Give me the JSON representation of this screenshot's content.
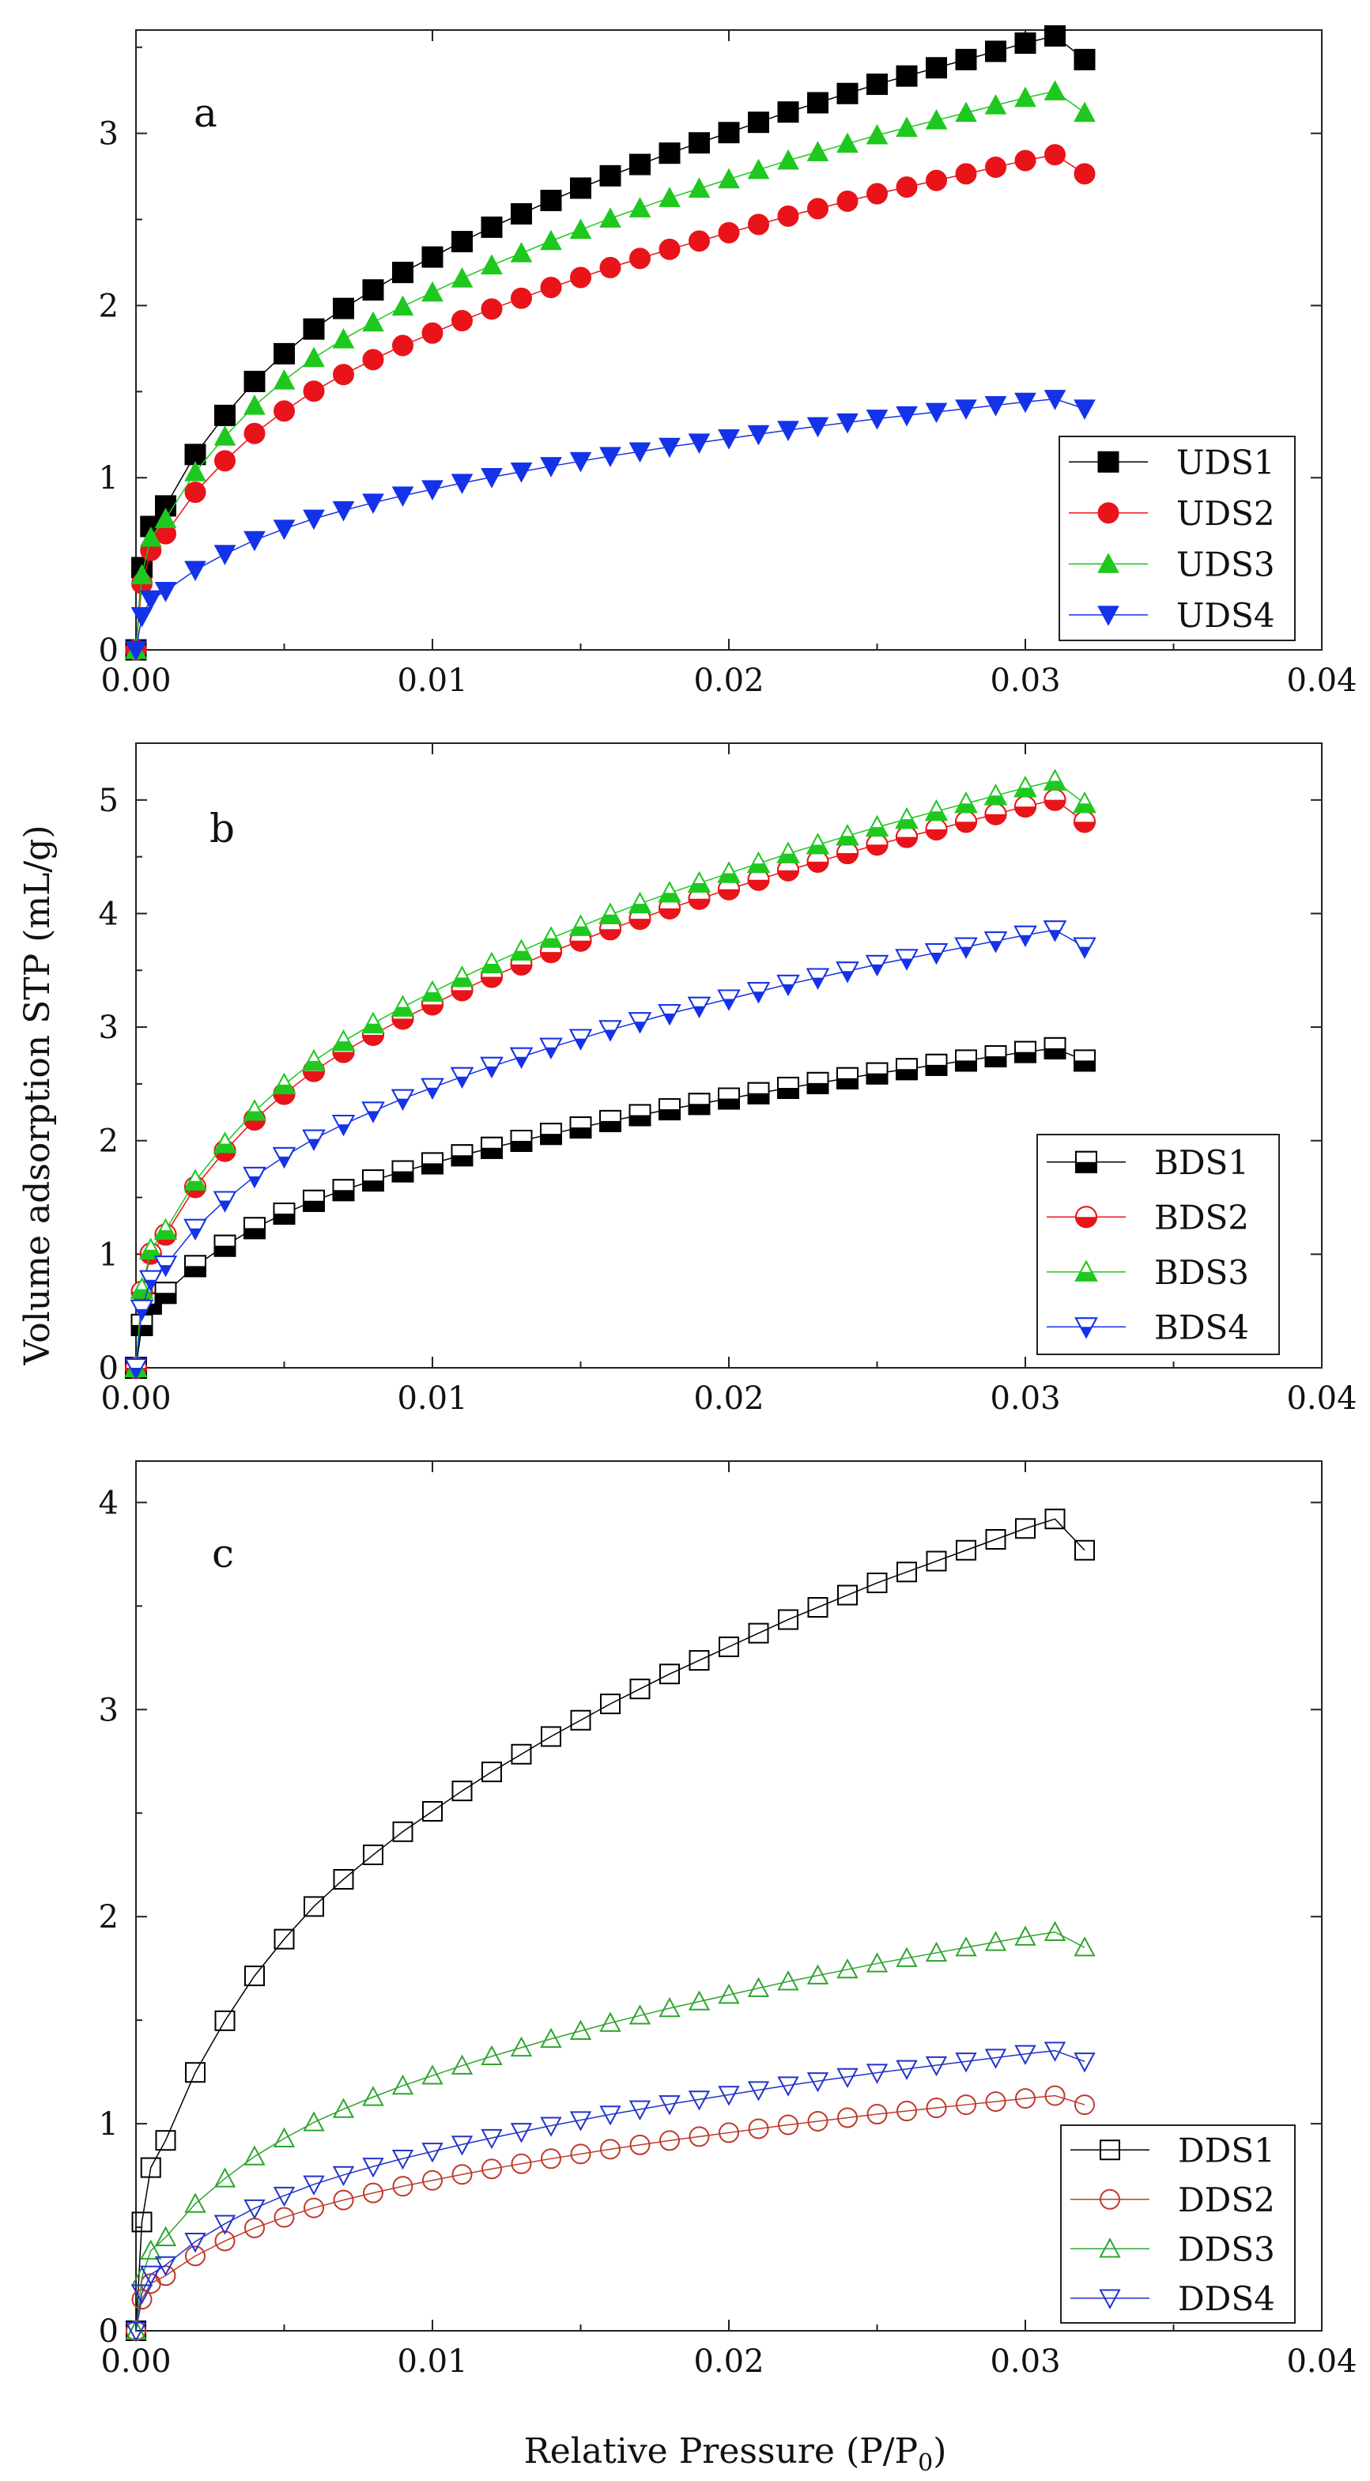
{
  "figure": {
    "ylabel": "Volume adsorption STP (mL/g)",
    "xlabel_main": "Relative Pressure (P/P",
    "xlabel_sub": "0",
    "xlabel_close": ")"
  },
  "chart_data": [
    {
      "type": "line",
      "panel": "a",
      "xlim": [
        0,
        0.04
      ],
      "ylim": [
        0,
        3.6
      ],
      "xticks": [
        "0.00",
        "0.01",
        "0.02",
        "0.03",
        "0.04"
      ],
      "yticks": [
        "0",
        "1",
        "2",
        "3"
      ],
      "xtick_values": [
        0,
        0.01,
        0.02,
        0.03,
        0.04
      ],
      "ytick_values": [
        0,
        1,
        2,
        3
      ],
      "legend_position": "bottom-right",
      "series": [
        {
          "name": "UDS1",
          "marker": "square",
          "filled": true,
          "color": "#000000",
          "scale": 0.5973
        },
        {
          "name": "UDS2",
          "marker": "circle",
          "filled": true,
          "color": "#e8141a",
          "scale": 0.4817
        },
        {
          "name": "UDS3",
          "marker": "triangle-up",
          "filled": true,
          "color": "#1ec81e",
          "scale": 0.5435
        },
        {
          "name": "UDS4",
          "marker": "triangle-down",
          "filled": true,
          "color": "#1432e8",
          "scale": 0.2441
        }
      ]
    },
    {
      "type": "line",
      "panel": "b",
      "xlim": [
        0,
        0.04
      ],
      "ylim": [
        0,
        5.5
      ],
      "xticks": [
        "0.00",
        "0.01",
        "0.02",
        "0.03",
        "0.04"
      ],
      "yticks": [
        "0",
        "1",
        "2",
        "3",
        "4",
        "5"
      ],
      "xtick_values": [
        0,
        0.01,
        0.02,
        0.03,
        0.04
      ],
      "ytick_values": [
        0,
        1,
        2,
        3,
        4,
        5
      ],
      "legend_position": "bottom-right",
      "series": [
        {
          "name": "BDS1",
          "marker": "square",
          "filled": "half",
          "color": "#000000",
          "scale": 0.4713
        },
        {
          "name": "BDS2",
          "marker": "circle",
          "filled": "half",
          "color": "#e8141a",
          "scale": 0.8377
        },
        {
          "name": "BDS3",
          "marker": "triangle-up",
          "filled": "half",
          "color": "#1ec81e",
          "scale": 0.8657
        },
        {
          "name": "BDS4",
          "marker": "triangle-down",
          "filled": "half",
          "color": "#1432e8",
          "scale": 0.6457
        }
      ]
    },
    {
      "type": "line",
      "panel": "c",
      "xlim": [
        0,
        0.04
      ],
      "ylim": [
        0,
        4.2
      ],
      "xticks": [
        "0.00",
        "0.01",
        "0.02",
        "0.03",
        "0.04"
      ],
      "yticks": [
        "0",
        "1",
        "2",
        "3",
        "4"
      ],
      "xtick_values": [
        0,
        0.01,
        0.02,
        0.03,
        0.04
      ],
      "ytick_values": [
        0,
        1,
        2,
        3,
        4
      ],
      "legend_position": "bottom-right",
      "series": [
        {
          "name": "DDS1",
          "marker": "square",
          "filled": false,
          "color": "#000000",
          "scale": 0.6567
        },
        {
          "name": "DDS2",
          "marker": "circle",
          "filled": false,
          "color": "#c0392b",
          "scale": 0.1902
        },
        {
          "name": "DDS3",
          "marker": "triangle-up",
          "filled": false,
          "color": "#2ea52e",
          "scale": 0.3225
        },
        {
          "name": "DDS4",
          "marker": "triangle-down",
          "filled": false,
          "color": "#2233cc",
          "scale": 0.2266
        }
      ]
    }
  ],
  "shared_x": [
    0,
    0.0002,
    0.0005,
    0.001,
    0.002,
    0.003,
    0.004,
    0.005,
    0.006,
    0.007,
    0.008,
    0.009,
    0.01,
    0.011,
    0.012,
    0.013,
    0.014,
    0.015,
    0.016,
    0.017,
    0.018,
    0.019,
    0.02,
    0.021,
    0.022,
    0.023,
    0.024,
    0.025,
    0.026,
    0.027,
    0.028,
    0.029,
    0.03,
    0.031,
    0.032
  ],
  "shared_shape": [
    0.0,
    0.8,
    1.2,
    1.4,
    1.9,
    2.28,
    2.61,
    2.88,
    3.12,
    3.32,
    3.5,
    3.67,
    3.82,
    3.97,
    4.11,
    4.24,
    4.37,
    4.49,
    4.61,
    4.72,
    4.83,
    4.93,
    5.03,
    5.13,
    5.23,
    5.32,
    5.41,
    5.5,
    5.58,
    5.66,
    5.74,
    5.82,
    5.9,
    5.97,
    5.74
  ]
}
